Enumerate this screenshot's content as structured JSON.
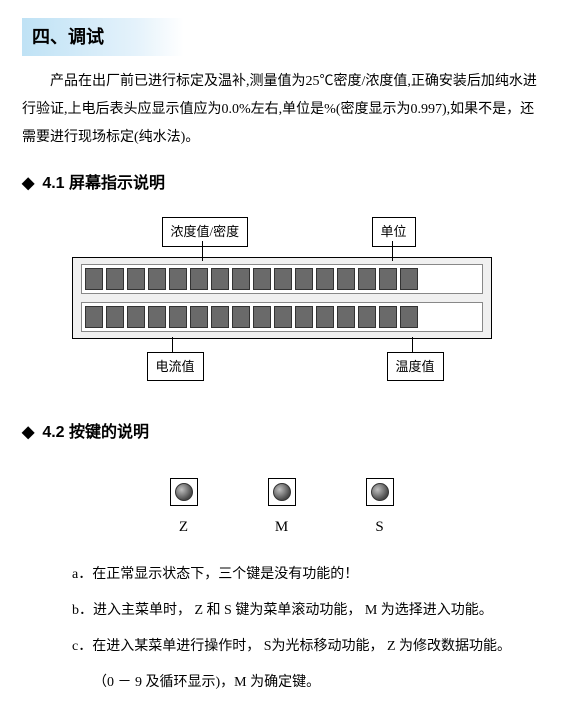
{
  "section_title": "四、调试",
  "intro_para": "产品在出厂前已进行标定及温补,测量值为25℃密度/浓度值,正确安装后加纯水进行验证,上电后表头应显示值应为0.0%左右,单位是%(密度显示为0.997),如果不是，还需要进行现场标定(纯水法)。",
  "sub1": {
    "bullet": "◆",
    "num": "4.1",
    "title": "屏幕指示说明"
  },
  "lcd": {
    "label_topleft": "浓度值/密度",
    "label_topright": "单位",
    "label_botleft": "电流值",
    "label_botright": "温度值",
    "cols": 16,
    "cell_color": "#6a6a6a",
    "panel_bg": "#f0f0f0"
  },
  "sub2": {
    "bullet": "◆",
    "num": "4.2",
    "title": "按键的说明"
  },
  "buttons": [
    {
      "letter": "Z"
    },
    {
      "letter": "M"
    },
    {
      "letter": "S"
    }
  ],
  "notes": {
    "a": "a．在正常显示状态下，三个键是没有功能的！",
    "b": "b．进入主菜单时， Z 和 S 键为菜单滚动功能， M 为选择进入功能。",
    "c": "c．在进入某菜单进行操作时， S为光标移动功能， Z 为修改数据功能。",
    "c2": "（0 － 9 及循环显示)，M 为确定键。"
  }
}
